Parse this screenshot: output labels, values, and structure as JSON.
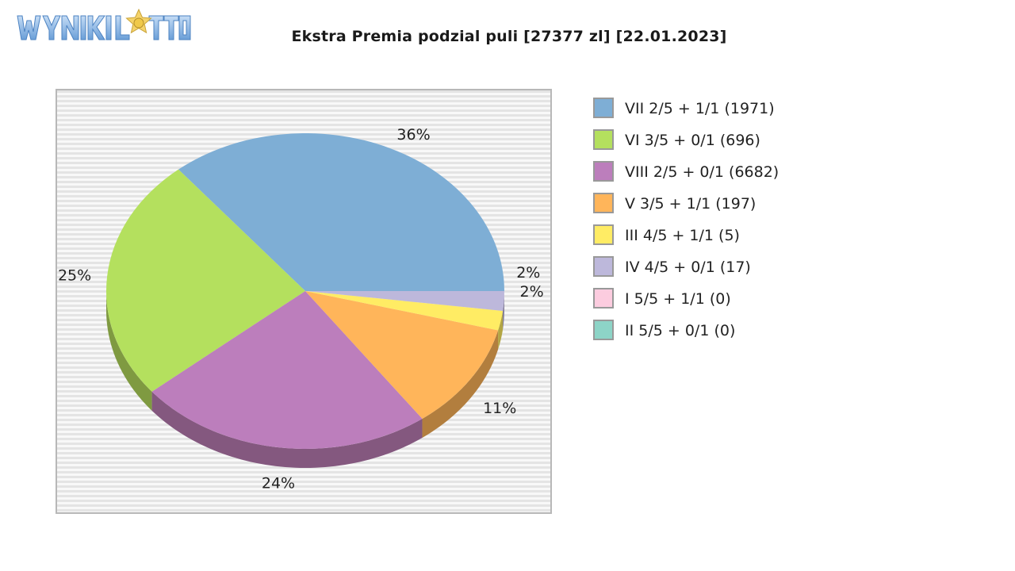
{
  "logo": {
    "alt": "WYNIKI LOTTO"
  },
  "chart_data": {
    "type": "pie",
    "title": "Ekstra Premia podzial puli [27377 zl] [22.01.2023]",
    "categories": [
      "VII 2/5 + 1/1 (1971)",
      "VI 3/5 + 0/1 (696)",
      "VIII 2/5 + 0/1 (6682)",
      "V 3/5 + 1/1 (197)",
      "III 4/5 + 1/1 (5)",
      "IV 4/5 + 0/1 (17)",
      "I 5/5 + 1/1 (0)",
      "II 5/5 + 0/1 (0)"
    ],
    "values": [
      36,
      25,
      24,
      11,
      2,
      2,
      0,
      0
    ],
    "data_labels": [
      "36%",
      "25%",
      "24%",
      "11%",
      "2%",
      "2%",
      "",
      ""
    ],
    "colors": [
      "#7eaed5",
      "#b4e05e",
      "#bc7ebc",
      "#ffb55a",
      "#ffec64",
      "#bdb8db",
      "#fcccdf",
      "#8dd4c7"
    ],
    "side_colors": [
      "#557b96",
      "#7f9a41",
      "#84587f",
      "#b27e3e",
      "#b2a544",
      "#847f99",
      "#b08e9c",
      "#62948b"
    ],
    "legend": {
      "position": "right",
      "entries": [
        "VII 2/5 + 1/1 (1971)",
        "VI 3/5 + 0/1 (696)",
        "VIII 2/5 + 0/1 (6682)",
        "V 3/5 + 1/1 (197)",
        "III 4/5 + 1/1 (5)",
        "IV 4/5 + 0/1 (17)",
        "I 5/5 + 1/1 (0)",
        "II 5/5 + 0/1 (0)"
      ]
    },
    "style": "3d-pie",
    "background": "striped-gray"
  }
}
